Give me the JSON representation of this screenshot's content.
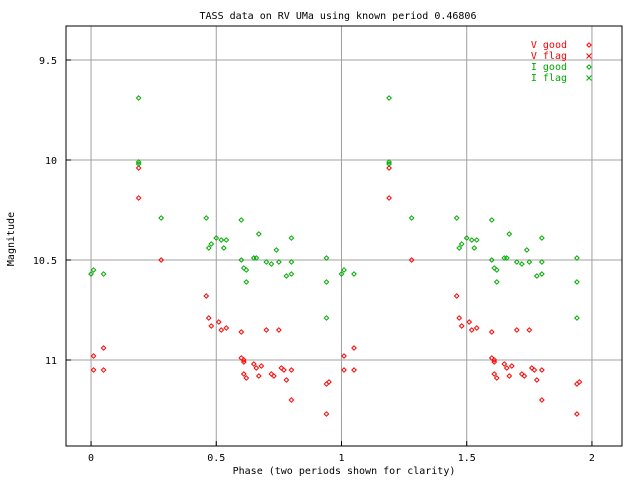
{
  "chart_data": {
    "type": "scatter",
    "title": "TASS data on RV UMa  using known period 0.46806",
    "xlabel": "Phase (two periods shown for clarity)",
    "ylabel": "Magnitude",
    "xlim": [
      -0.1,
      2.12
    ],
    "ylim": [
      11.43,
      9.33
    ],
    "y_inverted": true,
    "grid": true,
    "legend_position": "top-right",
    "x_ticks": [
      {
        "value": 0,
        "label": "0"
      },
      {
        "value": 0.5,
        "label": "0.5"
      },
      {
        "value": 1,
        "label": "1"
      },
      {
        "value": 1.5,
        "label": "1.5"
      },
      {
        "value": 2,
        "label": "2"
      }
    ],
    "y_ticks": [
      {
        "value": 9.5,
        "label": "9.5"
      },
      {
        "value": 10,
        "label": "10"
      },
      {
        "value": 10.5,
        "label": "10.5"
      },
      {
        "value": 11,
        "label": "11"
      }
    ],
    "series": [
      {
        "name": "V good",
        "color": "#ff0000",
        "marker": "diamond",
        "points": [
          [
            0.01,
            11.05
          ],
          [
            0.01,
            10.98
          ],
          [
            0.05,
            11.05
          ],
          [
            0.05,
            10.94
          ],
          [
            0.19,
            10.04
          ],
          [
            0.19,
            10.19
          ],
          [
            0.28,
            10.5
          ],
          [
            0.46,
            10.68
          ],
          [
            0.47,
            10.79
          ],
          [
            0.48,
            10.83
          ],
          [
            0.51,
            10.81
          ],
          [
            0.52,
            10.85
          ],
          [
            0.54,
            10.84
          ],
          [
            0.6,
            10.99
          ],
          [
            0.6,
            10.86
          ],
          [
            0.61,
            11.0
          ],
          [
            0.61,
            11.01
          ],
          [
            0.61,
            11.07
          ],
          [
            0.62,
            11.09
          ],
          [
            0.65,
            11.02
          ],
          [
            0.66,
            11.04
          ],
          [
            0.67,
            11.08
          ],
          [
            0.68,
            11.03
          ],
          [
            0.7,
            10.85
          ],
          [
            0.72,
            11.07
          ],
          [
            0.73,
            11.08
          ],
          [
            0.75,
            10.85
          ],
          [
            0.76,
            11.04
          ],
          [
            0.77,
            11.05
          ],
          [
            0.78,
            11.1
          ],
          [
            0.8,
            11.05
          ],
          [
            0.8,
            11.2
          ],
          [
            0.94,
            11.12
          ],
          [
            0.94,
            11.27
          ],
          [
            0.95,
            11.11
          ]
        ]
      },
      {
        "name": "V flag",
        "color": "#ff0000",
        "marker": "cross",
        "points": []
      },
      {
        "name": "I good",
        "color": "#00aa00",
        "marker": "diamond",
        "points": [
          [
            0.0,
            10.57
          ],
          [
            0.01,
            10.55
          ],
          [
            0.05,
            10.57
          ],
          [
            0.19,
            9.69
          ],
          [
            0.19,
            10.01
          ],
          [
            0.19,
            10.02
          ],
          [
            0.28,
            10.29
          ],
          [
            0.46,
            10.29
          ],
          [
            0.47,
            10.44
          ],
          [
            0.48,
            10.42
          ],
          [
            0.5,
            10.39
          ],
          [
            0.52,
            10.4
          ],
          [
            0.53,
            10.44
          ],
          [
            0.54,
            10.4
          ],
          [
            0.6,
            10.3
          ],
          [
            0.6,
            10.5
          ],
          [
            0.61,
            10.54
          ],
          [
            0.62,
            10.61
          ],
          [
            0.62,
            10.55
          ],
          [
            0.65,
            10.49
          ],
          [
            0.66,
            10.49
          ],
          [
            0.67,
            10.37
          ],
          [
            0.7,
            10.51
          ],
          [
            0.72,
            10.52
          ],
          [
            0.74,
            10.45
          ],
          [
            0.75,
            10.51
          ],
          [
            0.78,
            10.58
          ],
          [
            0.8,
            10.51
          ],
          [
            0.8,
            10.39
          ],
          [
            0.8,
            10.57
          ],
          [
            0.94,
            10.49
          ],
          [
            0.94,
            10.61
          ],
          [
            0.94,
            10.79
          ]
        ]
      },
      {
        "name": "I flag",
        "color": "#00aa00",
        "marker": "cross",
        "points": []
      }
    ]
  }
}
